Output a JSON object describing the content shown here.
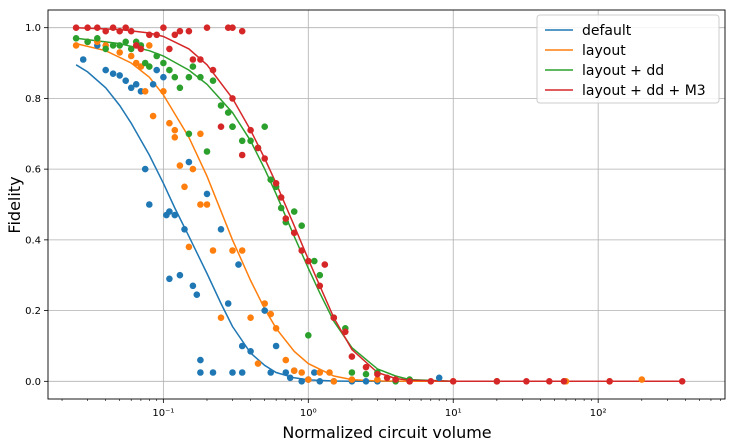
{
  "chart_data": {
    "type": "scatter",
    "xlabel": "Normalized circuit volume",
    "ylabel": "Fidelity",
    "xscale": "log",
    "xlim": [
      0.016,
      750
    ],
    "ylim": [
      -0.05,
      1.05
    ],
    "x_ticks": [
      {
        "value": 0.1,
        "label": "10⁻¹"
      },
      {
        "value": 1,
        "label": "10⁰"
      },
      {
        "value": 10,
        "label": "10¹"
      },
      {
        "value": 100,
        "label": "10²"
      }
    ],
    "y_ticks": [
      {
        "value": 0.0,
        "label": "0.0"
      },
      {
        "value": 0.2,
        "label": "0.2"
      },
      {
        "value": 0.4,
        "label": "0.4"
      },
      {
        "value": 0.6,
        "label": "0.6"
      },
      {
        "value": 0.8,
        "label": "0.8"
      },
      {
        "value": 1.0,
        "label": "1.0"
      }
    ],
    "grid": true,
    "legend_position": "top-right",
    "series": [
      {
        "name": "default",
        "color": "#1f77b4",
        "curve": [
          [
            0.025,
            0.895
          ],
          [
            0.03,
            0.875
          ],
          [
            0.04,
            0.83
          ],
          [
            0.05,
            0.78
          ],
          [
            0.06,
            0.73
          ],
          [
            0.08,
            0.64
          ],
          [
            0.1,
            0.56
          ],
          [
            0.12,
            0.49
          ],
          [
            0.15,
            0.41
          ],
          [
            0.2,
            0.305
          ],
          [
            0.25,
            0.22
          ],
          [
            0.3,
            0.155
          ],
          [
            0.4,
            0.08
          ],
          [
            0.5,
            0.045
          ],
          [
            0.6,
            0.025
          ],
          [
            0.8,
            0.01
          ],
          [
            1,
            0.004
          ],
          [
            1.5,
            0.001
          ],
          [
            2,
            0.0
          ],
          [
            3,
            0.0
          ],
          [
            10,
            0.0
          ],
          [
            380,
            0.0
          ]
        ],
        "points": [
          [
            0.028,
            0.91
          ],
          [
            0.035,
            0.95
          ],
          [
            0.04,
            0.88
          ],
          [
            0.045,
            0.87
          ],
          [
            0.05,
            0.865
          ],
          [
            0.055,
            0.85
          ],
          [
            0.06,
            0.83
          ],
          [
            0.065,
            0.84
          ],
          [
            0.07,
            0.82
          ],
          [
            0.075,
            0.6
          ],
          [
            0.08,
            0.5
          ],
          [
            0.085,
            0.84
          ],
          [
            0.09,
            0.88
          ],
          [
            0.1,
            0.86
          ],
          [
            0.105,
            0.47
          ],
          [
            0.11,
            0.48
          ],
          [
            0.11,
            0.29
          ],
          [
            0.12,
            0.47
          ],
          [
            0.13,
            0.3
          ],
          [
            0.14,
            0.43
          ],
          [
            0.15,
            0.62
          ],
          [
            0.16,
            0.27
          ],
          [
            0.17,
            0.245
          ],
          [
            0.18,
            0.06
          ],
          [
            0.18,
            0.025
          ],
          [
            0.2,
            0.53
          ],
          [
            0.22,
            0.025
          ],
          [
            0.25,
            0.43
          ],
          [
            0.28,
            0.22
          ],
          [
            0.3,
            0.025
          ],
          [
            0.33,
            0.33
          ],
          [
            0.35,
            0.1
          ],
          [
            0.35,
            0.025
          ],
          [
            0.4,
            0.085
          ],
          [
            0.5,
            0.2
          ],
          [
            0.55,
            0.025
          ],
          [
            0.6,
            0.1
          ],
          [
            0.7,
            0.025
          ],
          [
            0.75,
            0.01
          ],
          [
            0.8,
            0.03
          ],
          [
            0.9,
            0.0
          ],
          [
            1.0,
            0.005
          ],
          [
            1.1,
            0.025
          ],
          [
            1.2,
            0.0
          ],
          [
            1.5,
            0.0
          ],
          [
            2.0,
            0.0
          ],
          [
            2.5,
            0.0
          ],
          [
            3.0,
            0.0
          ],
          [
            5.0,
            0.0
          ],
          [
            8.0,
            0.01
          ],
          [
            20.0,
            0.0
          ]
        ]
      },
      {
        "name": "layout",
        "color": "#ff7f0e",
        "curve": [
          [
            0.025,
            0.955
          ],
          [
            0.04,
            0.935
          ],
          [
            0.06,
            0.9
          ],
          [
            0.08,
            0.86
          ],
          [
            0.1,
            0.81
          ],
          [
            0.15,
            0.69
          ],
          [
            0.2,
            0.58
          ],
          [
            0.3,
            0.4
          ],
          [
            0.4,
            0.285
          ],
          [
            0.5,
            0.205
          ],
          [
            0.6,
            0.15
          ],
          [
            0.8,
            0.085
          ],
          [
            1,
            0.05
          ],
          [
            1.5,
            0.015
          ],
          [
            2,
            0.005
          ],
          [
            3,
            0.001
          ],
          [
            5,
            0.0
          ],
          [
            10,
            0.0
          ],
          [
            380,
            0.0
          ]
        ],
        "points": [
          [
            0.025,
            0.95
          ],
          [
            0.03,
            0.96
          ],
          [
            0.035,
            0.96
          ],
          [
            0.04,
            0.95
          ],
          [
            0.05,
            0.93
          ],
          [
            0.06,
            0.92
          ],
          [
            0.065,
            0.9
          ],
          [
            0.07,
            0.89
          ],
          [
            0.075,
            0.82
          ],
          [
            0.08,
            0.95
          ],
          [
            0.085,
            0.75
          ],
          [
            0.1,
            0.82
          ],
          [
            0.11,
            0.73
          ],
          [
            0.12,
            0.71
          ],
          [
            0.12,
            0.69
          ],
          [
            0.13,
            0.61
          ],
          [
            0.14,
            0.55
          ],
          [
            0.15,
            0.38
          ],
          [
            0.16,
            0.6
          ],
          [
            0.18,
            0.5
          ],
          [
            0.18,
            0.7
          ],
          [
            0.2,
            0.5
          ],
          [
            0.22,
            0.37
          ],
          [
            0.25,
            0.18
          ],
          [
            0.3,
            0.37
          ],
          [
            0.35,
            0.37
          ],
          [
            0.4,
            0.18
          ],
          [
            0.45,
            0.05
          ],
          [
            0.5,
            0.22
          ],
          [
            0.55,
            0.19
          ],
          [
            0.6,
            0.15
          ],
          [
            0.7,
            0.06
          ],
          [
            0.8,
            0.03
          ],
          [
            0.9,
            0.025
          ],
          [
            1.0,
            0.005
          ],
          [
            1.2,
            0.025
          ],
          [
            1.4,
            0.025
          ],
          [
            1.5,
            0.0
          ],
          [
            2.0,
            0.005
          ],
          [
            3.0,
            0.005
          ],
          [
            5.0,
            0.0
          ],
          [
            10.0,
            0.0
          ],
          [
            20.0,
            0.0
          ],
          [
            60.0,
            0.0
          ],
          [
            120.0,
            0.0
          ],
          [
            200.0,
            0.005
          ]
        ]
      },
      {
        "name": "layout + dd",
        "color": "#2ca02c",
        "curve": [
          [
            0.025,
            0.97
          ],
          [
            0.05,
            0.955
          ],
          [
            0.08,
            0.935
          ],
          [
            0.1,
            0.92
          ],
          [
            0.15,
            0.88
          ],
          [
            0.2,
            0.84
          ],
          [
            0.3,
            0.76
          ],
          [
            0.4,
            0.68
          ],
          [
            0.5,
            0.6
          ],
          [
            0.6,
            0.53
          ],
          [
            0.8,
            0.41
          ],
          [
            1,
            0.32
          ],
          [
            1.2,
            0.25
          ],
          [
            1.5,
            0.17
          ],
          [
            2,
            0.095
          ],
          [
            3,
            0.035
          ],
          [
            4,
            0.015
          ],
          [
            5,
            0.005
          ],
          [
            10,
            0.0
          ],
          [
            380,
            0.0
          ]
        ],
        "points": [
          [
            0.025,
            0.97
          ],
          [
            0.03,
            0.96
          ],
          [
            0.035,
            0.97
          ],
          [
            0.04,
            0.94
          ],
          [
            0.045,
            0.95
          ],
          [
            0.05,
            0.95
          ],
          [
            0.055,
            0.96
          ],
          [
            0.06,
            0.94
          ],
          [
            0.065,
            0.96
          ],
          [
            0.07,
            0.95
          ],
          [
            0.075,
            0.9
          ],
          [
            0.08,
            0.89
          ],
          [
            0.09,
            0.92
          ],
          [
            0.1,
            0.9
          ],
          [
            0.11,
            0.88
          ],
          [
            0.12,
            0.86
          ],
          [
            0.13,
            0.83
          ],
          [
            0.15,
            0.86
          ],
          [
            0.15,
            0.7
          ],
          [
            0.16,
            0.89
          ],
          [
            0.18,
            0.86
          ],
          [
            0.2,
            0.65
          ],
          [
            0.22,
            0.85
          ],
          [
            0.25,
            0.78
          ],
          [
            0.28,
            0.76
          ],
          [
            0.3,
            0.72
          ],
          [
            0.3,
            0.72
          ],
          [
            0.35,
            0.68
          ],
          [
            0.4,
            0.68
          ],
          [
            0.45,
            0.66
          ],
          [
            0.5,
            0.72
          ],
          [
            0.55,
            0.57
          ],
          [
            0.6,
            0.55
          ],
          [
            0.65,
            0.49
          ],
          [
            0.7,
            0.45
          ],
          [
            0.8,
            0.48
          ],
          [
            0.9,
            0.44
          ],
          [
            1.0,
            0.13
          ],
          [
            1.1,
            0.34
          ],
          [
            1.2,
            0.3
          ],
          [
            1.5,
            0.18
          ],
          [
            1.8,
            0.15
          ],
          [
            2.0,
            0.025
          ],
          [
            2.5,
            0.02
          ],
          [
            3.0,
            0.025
          ],
          [
            4.0,
            0.0
          ],
          [
            5.0,
            0.005
          ]
        ]
      },
      {
        "name": "layout + dd + M3",
        "color": "#d62728",
        "curve": [
          [
            0.025,
            1.0
          ],
          [
            0.05,
            0.995
          ],
          [
            0.08,
            0.985
          ],
          [
            0.1,
            0.975
          ],
          [
            0.15,
            0.94
          ],
          [
            0.2,
            0.895
          ],
          [
            0.3,
            0.8
          ],
          [
            0.4,
            0.71
          ],
          [
            0.5,
            0.63
          ],
          [
            0.6,
            0.56
          ],
          [
            0.8,
            0.44
          ],
          [
            1,
            0.345
          ],
          [
            1.2,
            0.27
          ],
          [
            1.5,
            0.18
          ],
          [
            2,
            0.09
          ],
          [
            3,
            0.025
          ],
          [
            4,
            0.008
          ],
          [
            5,
            0.003
          ],
          [
            10,
            0.0
          ],
          [
            380,
            0.0
          ]
        ],
        "points": [
          [
            0.025,
            1.0
          ],
          [
            0.03,
            1.0
          ],
          [
            0.035,
            1.0
          ],
          [
            0.04,
            0.99
          ],
          [
            0.045,
            1.0
          ],
          [
            0.05,
            0.99
          ],
          [
            0.055,
            1.0
          ],
          [
            0.06,
            0.99
          ],
          [
            0.065,
            0.95
          ],
          [
            0.07,
            0.94
          ],
          [
            0.08,
            0.98
          ],
          [
            0.09,
            0.98
          ],
          [
            0.1,
            1.0
          ],
          [
            0.11,
            0.94
          ],
          [
            0.12,
            0.98
          ],
          [
            0.13,
            0.99
          ],
          [
            0.15,
            0.99
          ],
          [
            0.16,
            0.91
          ],
          [
            0.18,
            0.91
          ],
          [
            0.2,
            1.0
          ],
          [
            0.22,
            0.88
          ],
          [
            0.25,
            0.72
          ],
          [
            0.28,
            1.0
          ],
          [
            0.3,
            1.0
          ],
          [
            0.3,
            0.8
          ],
          [
            0.35,
            0.99
          ],
          [
            0.35,
            0.64
          ],
          [
            0.4,
            0.71
          ],
          [
            0.45,
            0.66
          ],
          [
            0.5,
            0.63
          ],
          [
            0.6,
            0.56
          ],
          [
            0.65,
            0.52
          ],
          [
            0.7,
            0.46
          ],
          [
            0.8,
            0.42
          ],
          [
            0.9,
            0.37
          ],
          [
            1.0,
            0.34
          ],
          [
            1.2,
            0.27
          ],
          [
            1.3,
            0.33
          ],
          [
            1.5,
            0.18
          ],
          [
            1.8,
            0.14
          ],
          [
            2.0,
            0.07
          ],
          [
            2.5,
            0.04
          ],
          [
            3.0,
            0.02
          ],
          [
            3.5,
            0.01
          ],
          [
            4.0,
            0.005
          ],
          [
            5.0,
            0.0
          ],
          [
            7.0,
            0.0
          ],
          [
            10.0,
            0.0
          ],
          [
            20.0,
            0.0
          ],
          [
            32.0,
            0.0
          ],
          [
            46.0,
            0.0
          ],
          [
            58.0,
            0.0
          ],
          [
            120.0,
            0.0
          ],
          [
            380.0,
            0.0
          ]
        ]
      }
    ]
  }
}
